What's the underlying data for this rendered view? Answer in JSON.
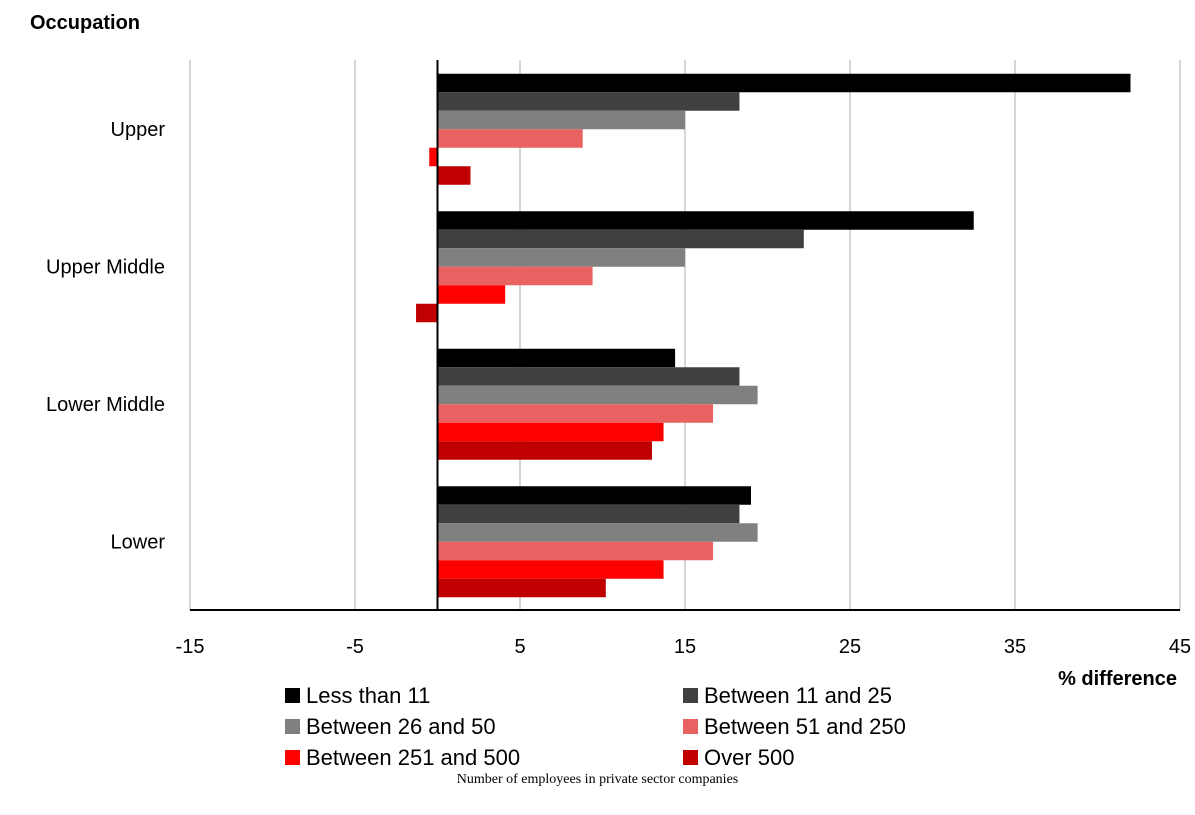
{
  "chart_data": {
    "type": "bar",
    "orientation": "horizontal",
    "title": "",
    "ylabel": "Occupation",
    "xlabel": "% difference",
    "caption": "Number of employees in private sector companies",
    "categories": [
      "Upper",
      "Upper Middle",
      "Lower Middle",
      "Lower"
    ],
    "xlim": [
      -15,
      45
    ],
    "xticks": [
      "-15",
      "-5",
      "5",
      "15",
      "25",
      "35",
      "45"
    ],
    "grid": true,
    "legend_position": "bottom",
    "series": [
      {
        "name": "Less than 11",
        "color": "#000000",
        "values": [
          42,
          32.5,
          14.4,
          19
        ]
      },
      {
        "name": "Between 11 and 25",
        "color": "#404040",
        "values": [
          18.3,
          22.2,
          18.3,
          18.3
        ]
      },
      {
        "name": "Between 26 and 50",
        "color": "#808080",
        "values": [
          15,
          15,
          19.4,
          19.4
        ]
      },
      {
        "name": "Between 51 and 250",
        "color": "#e86262",
        "values": [
          8.8,
          9.4,
          16.7,
          16.7
        ]
      },
      {
        "name": "Between 251 and 500",
        "color": "#ff0000",
        "values": [
          -0.5,
          4.1,
          13.7,
          13.7
        ]
      },
      {
        "name": "Over 500",
        "color": "#c00000",
        "values": [
          2,
          -1.3,
          13,
          10.2
        ]
      }
    ]
  }
}
